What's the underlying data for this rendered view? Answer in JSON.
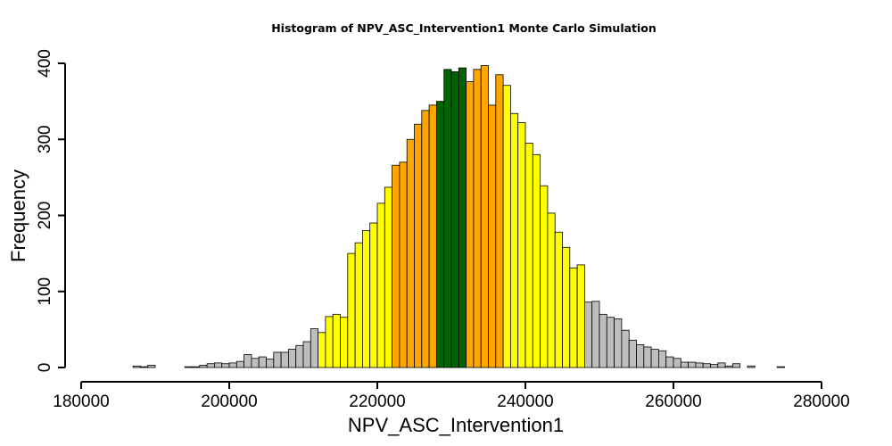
{
  "colors": {
    "tail": "#bebebe",
    "inner": "#ffff00",
    "middle": "#ffa500",
    "center": "#006400"
  },
  "chart_data": {
    "type": "bar",
    "title": "Histogram of  NPV_ASC_Intervention1  Monte Carlo Simulation",
    "xlabel": "NPV_ASC_Intervention1",
    "ylabel": "Frequency",
    "xlim": [
      180000,
      280000
    ],
    "ylim": [
      0,
      400
    ],
    "x_ticks": [
      "180000",
      "200000",
      "220000",
      "240000",
      "260000",
      "280000"
    ],
    "y_ticks": [
      "0",
      "100",
      "200",
      "300",
      "400"
    ],
    "grid": false,
    "bin_start": 182000,
    "bin_width": 1000,
    "values": [
      0,
      0,
      0,
      0,
      0,
      2,
      1,
      3,
      0,
      0,
      0,
      0,
      1,
      1,
      3,
      5,
      6,
      5,
      6,
      8,
      17,
      12,
      14,
      11,
      20,
      20,
      24,
      29,
      34,
      51,
      46,
      67,
      70,
      66,
      150,
      164,
      180,
      190,
      216,
      237,
      266,
      270,
      300,
      320,
      338,
      345,
      350,
      392,
      389,
      394,
      376,
      392,
      397,
      345,
      385,
      371,
      334,
      322,
      295,
      280,
      239,
      203,
      178,
      158,
      131,
      135,
      86,
      87,
      70,
      66,
      64,
      49,
      36,
      30,
      27,
      24,
      22,
      14,
      12,
      7,
      7,
      6,
      5,
      4,
      6,
      2,
      5,
      0,
      2,
      0,
      0,
      0,
      1,
      0,
      0,
      0,
      0,
      0,
      0,
      0
    ],
    "bin_groups": [
      "tail",
      "tail",
      "tail",
      "tail",
      "tail",
      "tail",
      "tail",
      "tail",
      "tail",
      "tail",
      "tail",
      "tail",
      "tail",
      "tail",
      "tail",
      "tail",
      "tail",
      "tail",
      "tail",
      "tail",
      "tail",
      "tail",
      "tail",
      "tail",
      "tail",
      "tail",
      "tail",
      "tail",
      "tail",
      "tail",
      "inner",
      "inner",
      "inner",
      "inner",
      "inner",
      "inner",
      "inner",
      "inner",
      "inner",
      "inner",
      "middle",
      "middle",
      "middle",
      "middle",
      "middle",
      "middle",
      "center",
      "center",
      "center",
      "center",
      "middle",
      "middle",
      "middle",
      "middle",
      "middle",
      "inner",
      "inner",
      "inner",
      "inner",
      "inner",
      "inner",
      "inner",
      "inner",
      "inner",
      "inner",
      "inner",
      "tail",
      "tail",
      "tail",
      "tail",
      "tail",
      "tail",
      "tail",
      "tail",
      "tail",
      "tail",
      "tail",
      "tail",
      "tail",
      "tail",
      "tail",
      "tail",
      "tail",
      "tail",
      "tail",
      "tail",
      "tail",
      "tail",
      "tail",
      "tail",
      "tail",
      "tail",
      "tail",
      "tail",
      "tail",
      "tail",
      "tail",
      "tail",
      "tail",
      "tail"
    ]
  }
}
